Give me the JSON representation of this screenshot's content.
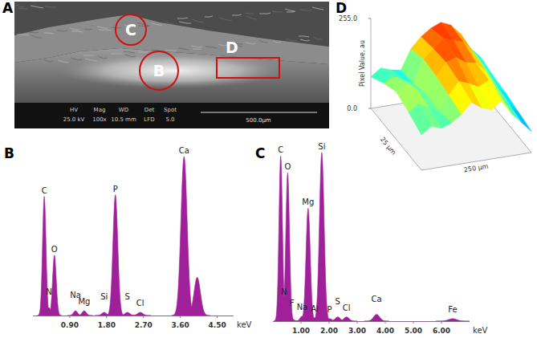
{
  "panel_a": {
    "label": "A",
    "regions": [
      "C",
      "B",
      "D"
    ],
    "info": {
      "headers": [
        "HV",
        "Mag",
        "WD",
        "Det",
        "Spot"
      ],
      "values": [
        "25.0 kV",
        "100x",
        "10.5 mm",
        "LFD",
        "5.0"
      ]
    },
    "scale_bar": "500.0µm"
  },
  "chart_data": [
    {
      "type": "spectrum",
      "title": "B",
      "x_label": "keV",
      "color": "#a0209a",
      "tick_labels": "x",
      "x": [
        0.277,
        0.392,
        0.525,
        1.041,
        1.253,
        1.739,
        2.013,
        2.307,
        2.621,
        3.69,
        4.012
      ],
      "values": [
        75,
        5,
        38,
        3,
        3,
        2,
        76,
        2,
        2,
        100,
        24
      ],
      "labels": [
        "C",
        "N",
        "O",
        "Na",
        "Mg",
        "Si",
        "P",
        "S",
        "Cl",
        "Ca",
        null
      ],
      "xlim": [
        0,
        4.9
      ],
      "ylim": [
        0,
        100
      ],
      "xticks": [
        {
          "value": 0.9,
          "label": "0.90"
        },
        {
          "value": 1.8,
          "label": "1.80"
        },
        {
          "value": 2.7,
          "label": "2.70"
        },
        {
          "value": 3.6,
          "label": "3.60"
        },
        {
          "value": 4.5,
          "label": "4.50"
        }
      ]
    },
    {
      "type": "spectrum",
      "title": "C",
      "x_label": "keV",
      "color": "#a0209a",
      "tick_labels": "x",
      "x": [
        0.277,
        0.392,
        0.525,
        0.677,
        1.041,
        1.253,
        1.486,
        1.739,
        2.013,
        2.307,
        2.621,
        3.69,
        6.398
      ],
      "values": [
        98,
        8,
        88,
        1.5,
        3,
        67,
        2,
        100,
        1.5,
        2.5,
        2.5,
        4,
        1.5
      ],
      "labels": [
        "C",
        "N",
        "O",
        "F",
        "Na",
        "Mg",
        "Al",
        "Si",
        "P",
        "S",
        "Cl",
        "Ca",
        "Fe"
      ],
      "xlim": [
        0,
        7.0
      ],
      "ylim": [
        0,
        100
      ],
      "xticks": [
        {
          "value": 1,
          "label": "1.00"
        },
        {
          "value": 2,
          "label": "2.00"
        },
        {
          "value": 3,
          "label": "3.00"
        },
        {
          "value": 4,
          "label": "4.00"
        },
        {
          "value": 5,
          "label": "5.00"
        },
        {
          "value": 6,
          "label": "6.00"
        }
      ]
    },
    {
      "type": "surface",
      "title": "D",
      "z_label": "Pixel Value, au",
      "x_label": "250 µm",
      "y_label": "25 µm",
      "zlim": [
        0,
        255
      ],
      "zticks": [
        {
          "value": 0,
          "label": "0.0"
        },
        {
          "value": 255,
          "label": "255.0"
        }
      ],
      "z": [
        [
          100,
          120,
          110,
          120,
          140,
          170,
          150,
          140,
          160,
          120,
          90,
          60
        ],
        [
          120,
          140,
          125,
          110,
          150,
          185,
          175,
          160,
          175,
          135,
          100,
          70
        ],
        [
          135,
          150,
          135,
          115,
          160,
          195,
          205,
          185,
          180,
          150,
          110,
          80
        ],
        [
          115,
          130,
          115,
          100,
          165,
          190,
          215,
          205,
          195,
          160,
          120,
          85
        ],
        [
          90,
          110,
          100,
          95,
          150,
          180,
          200,
          212,
          200,
          170,
          125,
          95
        ]
      ]
    }
  ]
}
